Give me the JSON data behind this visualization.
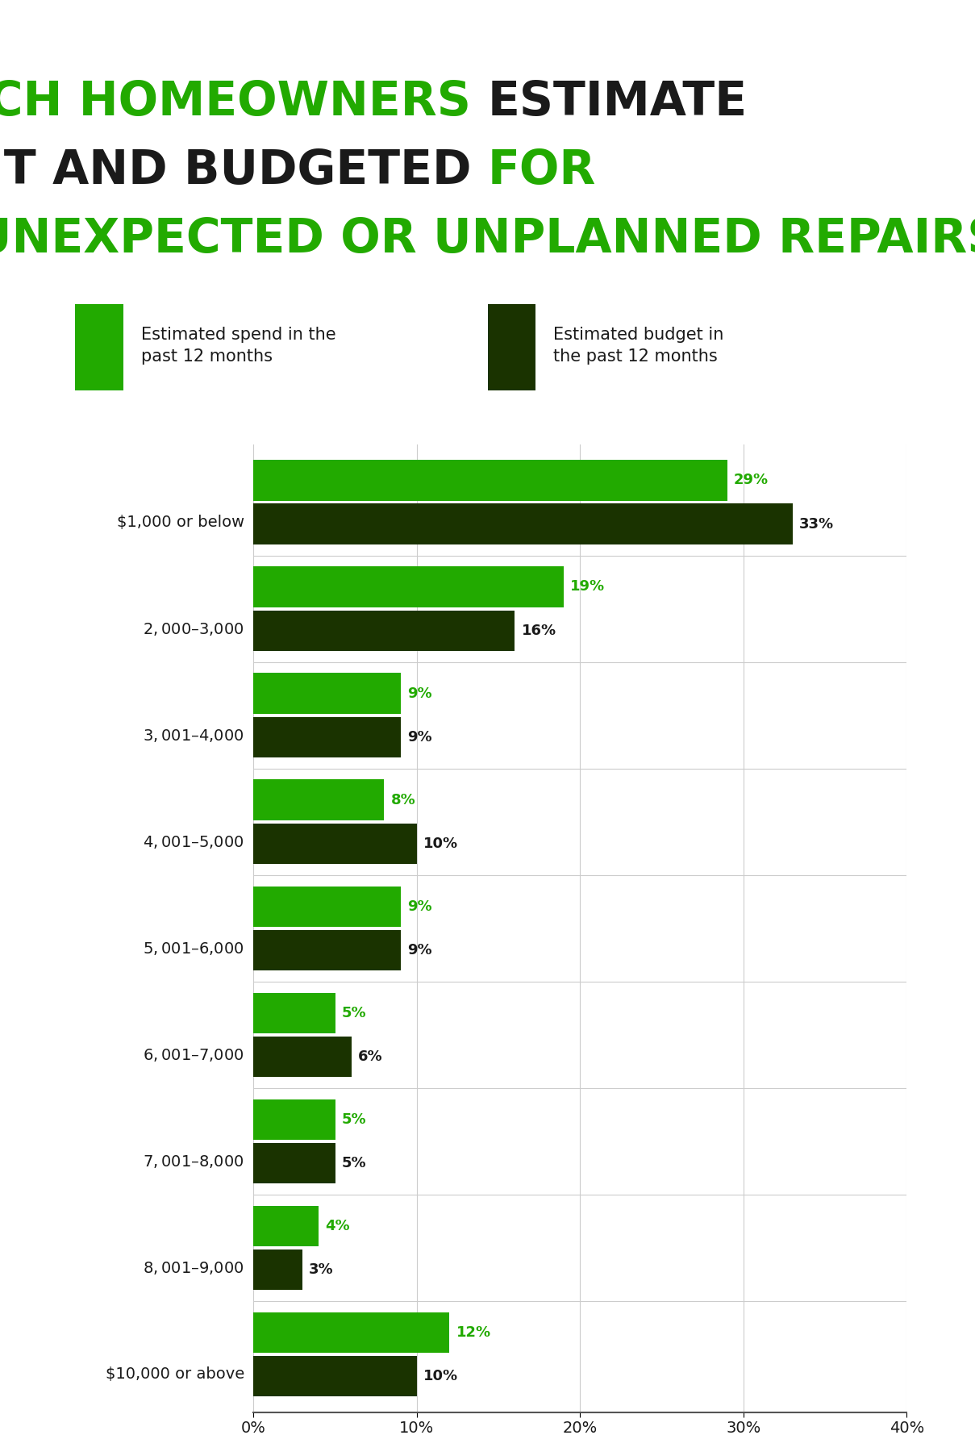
{
  "categories": [
    "$1,000 or below",
    "$2,000–$3,000",
    "$3,001–$4,000",
    "$4,001–$5,000",
    "$5,001–$6,000",
    "$6,001–$7,000",
    "$7,001–$8,000",
    "$8,001–$9,000",
    "$10,000 or above"
  ],
  "spend_values": [
    29,
    19,
    9,
    8,
    9,
    5,
    5,
    4,
    12
  ],
  "budget_values": [
    33,
    16,
    9,
    10,
    9,
    6,
    5,
    3,
    10
  ],
  "spend_color": "#22aa00",
  "budget_color": "#1a3300",
  "spend_label": "Estimated spend in the\npast 12 months",
  "budget_label": "Estimated budget in\nthe past 12 months",
  "title_green_color": "#22aa00",
  "title_dark_color": "#1a1a1a",
  "background_color": "#ffffff",
  "xlim": [
    0,
    40
  ],
  "xtick_labels": [
    "0%",
    "10%",
    "20%",
    "30%",
    "40%"
  ],
  "xtick_values": [
    0,
    10,
    20,
    30,
    40
  ],
  "bar_height": 0.38,
  "bar_gap": 0.03
}
